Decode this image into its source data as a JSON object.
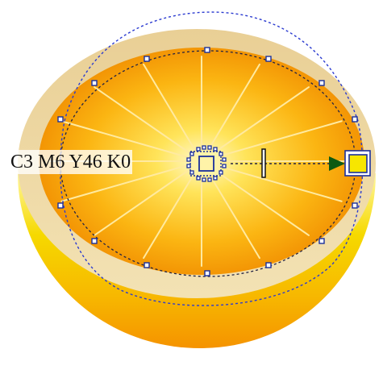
{
  "canvas": {
    "background": "#ffffff",
    "fill_label": "C3 M6 Y46 K0"
  },
  "object": {
    "name": "orange-half",
    "peel_color": "#f3c800",
    "rim_color": "#ead4a0",
    "flesh_inner_color": "#fff8c8",
    "flesh_outer_color": "#f08f00",
    "segment_color": "#ffeaa0",
    "segment_count": 16
  },
  "tool": {
    "name": "interactive-fill-tool",
    "handle_color": "#1a2f9c",
    "end_handle_fill": "#f7e600",
    "arrow_color": "#0d5a12",
    "selection_dash_color": "#2b3bd0"
  }
}
